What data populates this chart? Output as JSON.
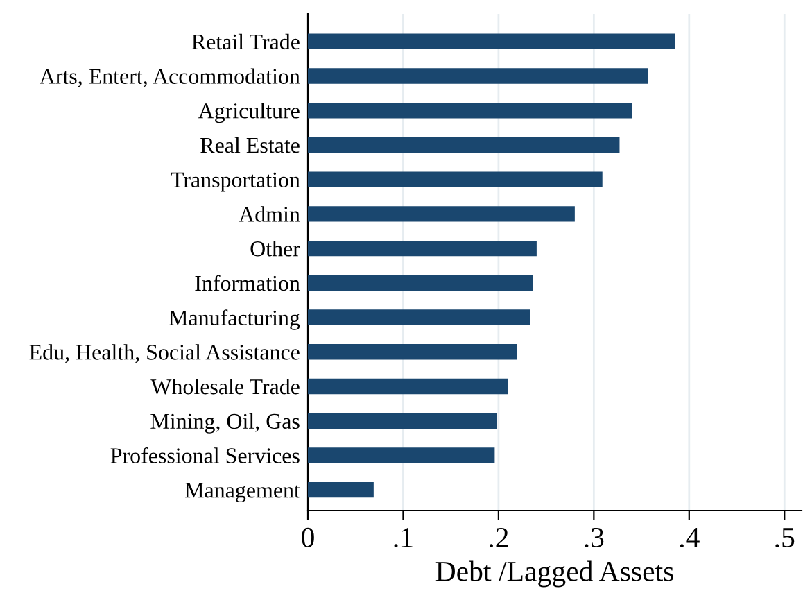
{
  "chart_data": {
    "type": "bar",
    "orientation": "horizontal",
    "xlabel": "Debt /Lagged Assets",
    "categories": [
      "Retail Trade",
      "Arts, Entert, Accommodation",
      "Agriculture",
      "Real Estate",
      "Transportation",
      "Admin",
      "Other",
      "Information",
      "Manufacturing",
      "Edu, Health, Social Assistance",
      "Wholesale Trade",
      "Mining, Oil, Gas",
      "Professional Services",
      "Management"
    ],
    "values": [
      0.385,
      0.357,
      0.34,
      0.327,
      0.309,
      0.28,
      0.24,
      0.236,
      0.233,
      0.219,
      0.21,
      0.198,
      0.196,
      0.069
    ],
    "color": "#1a476f",
    "xlim": [
      0,
      0.518
    ],
    "xticks": [
      0,
      {
        "value": 0.1,
        "label": ".1"
      },
      {
        "value": 0.2,
        "label": ".2"
      },
      {
        "value": 0.3,
        "label": ".3"
      },
      {
        "value": 0.4,
        "label": ".4"
      },
      {
        "value": 0.5,
        "label": ".5"
      }
    ],
    "grid": "x"
  }
}
